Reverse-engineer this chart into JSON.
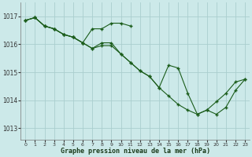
{
  "xlabel": "Graphe pression niveau de la mer (hPa)",
  "background_color": "#cce9e9",
  "line_color": "#1a5c1a",
  "grid_color": "#aacece",
  "yticks": [
    1013,
    1014,
    1015,
    1016,
    1017
  ],
  "ylim": [
    1012.6,
    1017.5
  ],
  "xlim": [
    -0.5,
    23.5
  ],
  "xticks": [
    0,
    1,
    2,
    3,
    4,
    5,
    6,
    7,
    8,
    9,
    10,
    11,
    12,
    13,
    14,
    15,
    16,
    17,
    18,
    19,
    20,
    21,
    22,
    23
  ],
  "series1_x": [
    0,
    1,
    2,
    3,
    4,
    5,
    6,
    7,
    8,
    9,
    10,
    11
  ],
  "series1_y": [
    1016.85,
    1016.95,
    1016.65,
    1016.55,
    1016.35,
    1016.25,
    1016.05,
    1016.55,
    1016.55,
    1016.75,
    1016.75,
    1016.65
  ],
  "series2_x": [
    0,
    1,
    2,
    3,
    4,
    5,
    6,
    7,
    8,
    9,
    10,
    11,
    12,
    13,
    14,
    15,
    16,
    17,
    18,
    19,
    20,
    21,
    22,
    23
  ],
  "series2_y": [
    1016.85,
    1016.95,
    1016.65,
    1016.55,
    1016.35,
    1016.25,
    1016.05,
    1015.85,
    1015.95,
    1015.95,
    1015.65,
    1015.35,
    1015.05,
    1014.85,
    1014.45,
    1014.15,
    1013.85,
    1013.65,
    1013.5,
    1013.65,
    1013.95,
    1014.25,
    1014.65,
    1014.75
  ],
  "series3_x": [
    0,
    1,
    2,
    3,
    4,
    5,
    6,
    7,
    8,
    9,
    10,
    11,
    12,
    13,
    14,
    15,
    16,
    17,
    18,
    19,
    20,
    21,
    22,
    23
  ],
  "series3_y": [
    1016.85,
    1016.95,
    1016.65,
    1016.55,
    1016.35,
    1016.25,
    1016.05,
    1015.85,
    1016.05,
    1016.05,
    1015.65,
    1015.35,
    1015.05,
    1014.85,
    1014.45,
    1015.25,
    1015.15,
    1014.25,
    1013.5,
    1013.65,
    1013.5,
    1013.75,
    1014.35,
    1014.75
  ]
}
